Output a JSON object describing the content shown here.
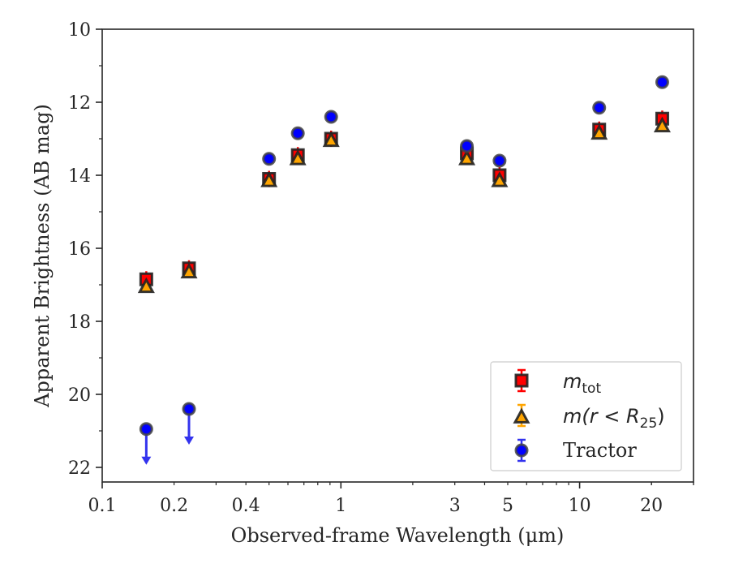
{
  "chart_data": {
    "type": "scatter",
    "xlabel": "Observed-frame Wavelength (μm)",
    "ylabel": "Apparent Brightness (AB mag)",
    "x_scale": "log",
    "y_inverted": true,
    "xlim": [
      0.1,
      30
    ],
    "ylim": [
      22.4,
      10
    ],
    "x_ticks": [
      0.1,
      0.2,
      0.4,
      1,
      3,
      5,
      10,
      20
    ],
    "x_tick_labels": [
      "0.1",
      "0.2",
      "0.4",
      "1",
      "3",
      "5",
      "10",
      "20"
    ],
    "y_ticks": [
      10,
      12,
      14,
      16,
      18,
      20,
      22
    ],
    "y_tick_labels": [
      "10",
      "12",
      "14",
      "16",
      "18",
      "20",
      "22"
    ],
    "grid": false,
    "legend_position": "lower-right",
    "series": [
      {
        "name": "m_tot",
        "label": "m",
        "label_sub": "tot",
        "marker": "square",
        "color": "#ff0000",
        "edge": "#222222",
        "x": [
          0.153,
          0.231,
          0.5,
          0.66,
          0.91,
          3.37,
          4.62,
          12.08,
          22.19
        ],
        "y": [
          16.85,
          16.55,
          14.1,
          13.45,
          13.0,
          13.4,
          14.0,
          12.75,
          12.45
        ]
      },
      {
        "name": "m(r < R25)",
        "label": "m(r < R",
        "label_sub": "25",
        "label_tail": ")",
        "marker": "triangle",
        "color": "#ffa500",
        "edge": "#222222",
        "x": [
          0.153,
          0.231,
          0.5,
          0.66,
          0.91,
          3.37,
          4.62,
          12.08,
          22.19
        ],
        "y": [
          17.05,
          16.65,
          14.15,
          13.55,
          13.05,
          13.55,
          14.15,
          12.85,
          12.65
        ]
      },
      {
        "name": "Tractor",
        "label": "Tractor",
        "marker": "circle",
        "color": "#0000ff",
        "edge": "#444444",
        "x": [
          0.153,
          0.231,
          0.5,
          0.66,
          0.91,
          3.37,
          4.62,
          12.08,
          22.19
        ],
        "y": [
          20.95,
          20.4,
          13.55,
          12.85,
          12.4,
          13.2,
          13.6,
          12.15,
          11.45
        ],
        "upper_limits": [
          true,
          true,
          false,
          false,
          false,
          false,
          false,
          false,
          false
        ]
      }
    ]
  }
}
